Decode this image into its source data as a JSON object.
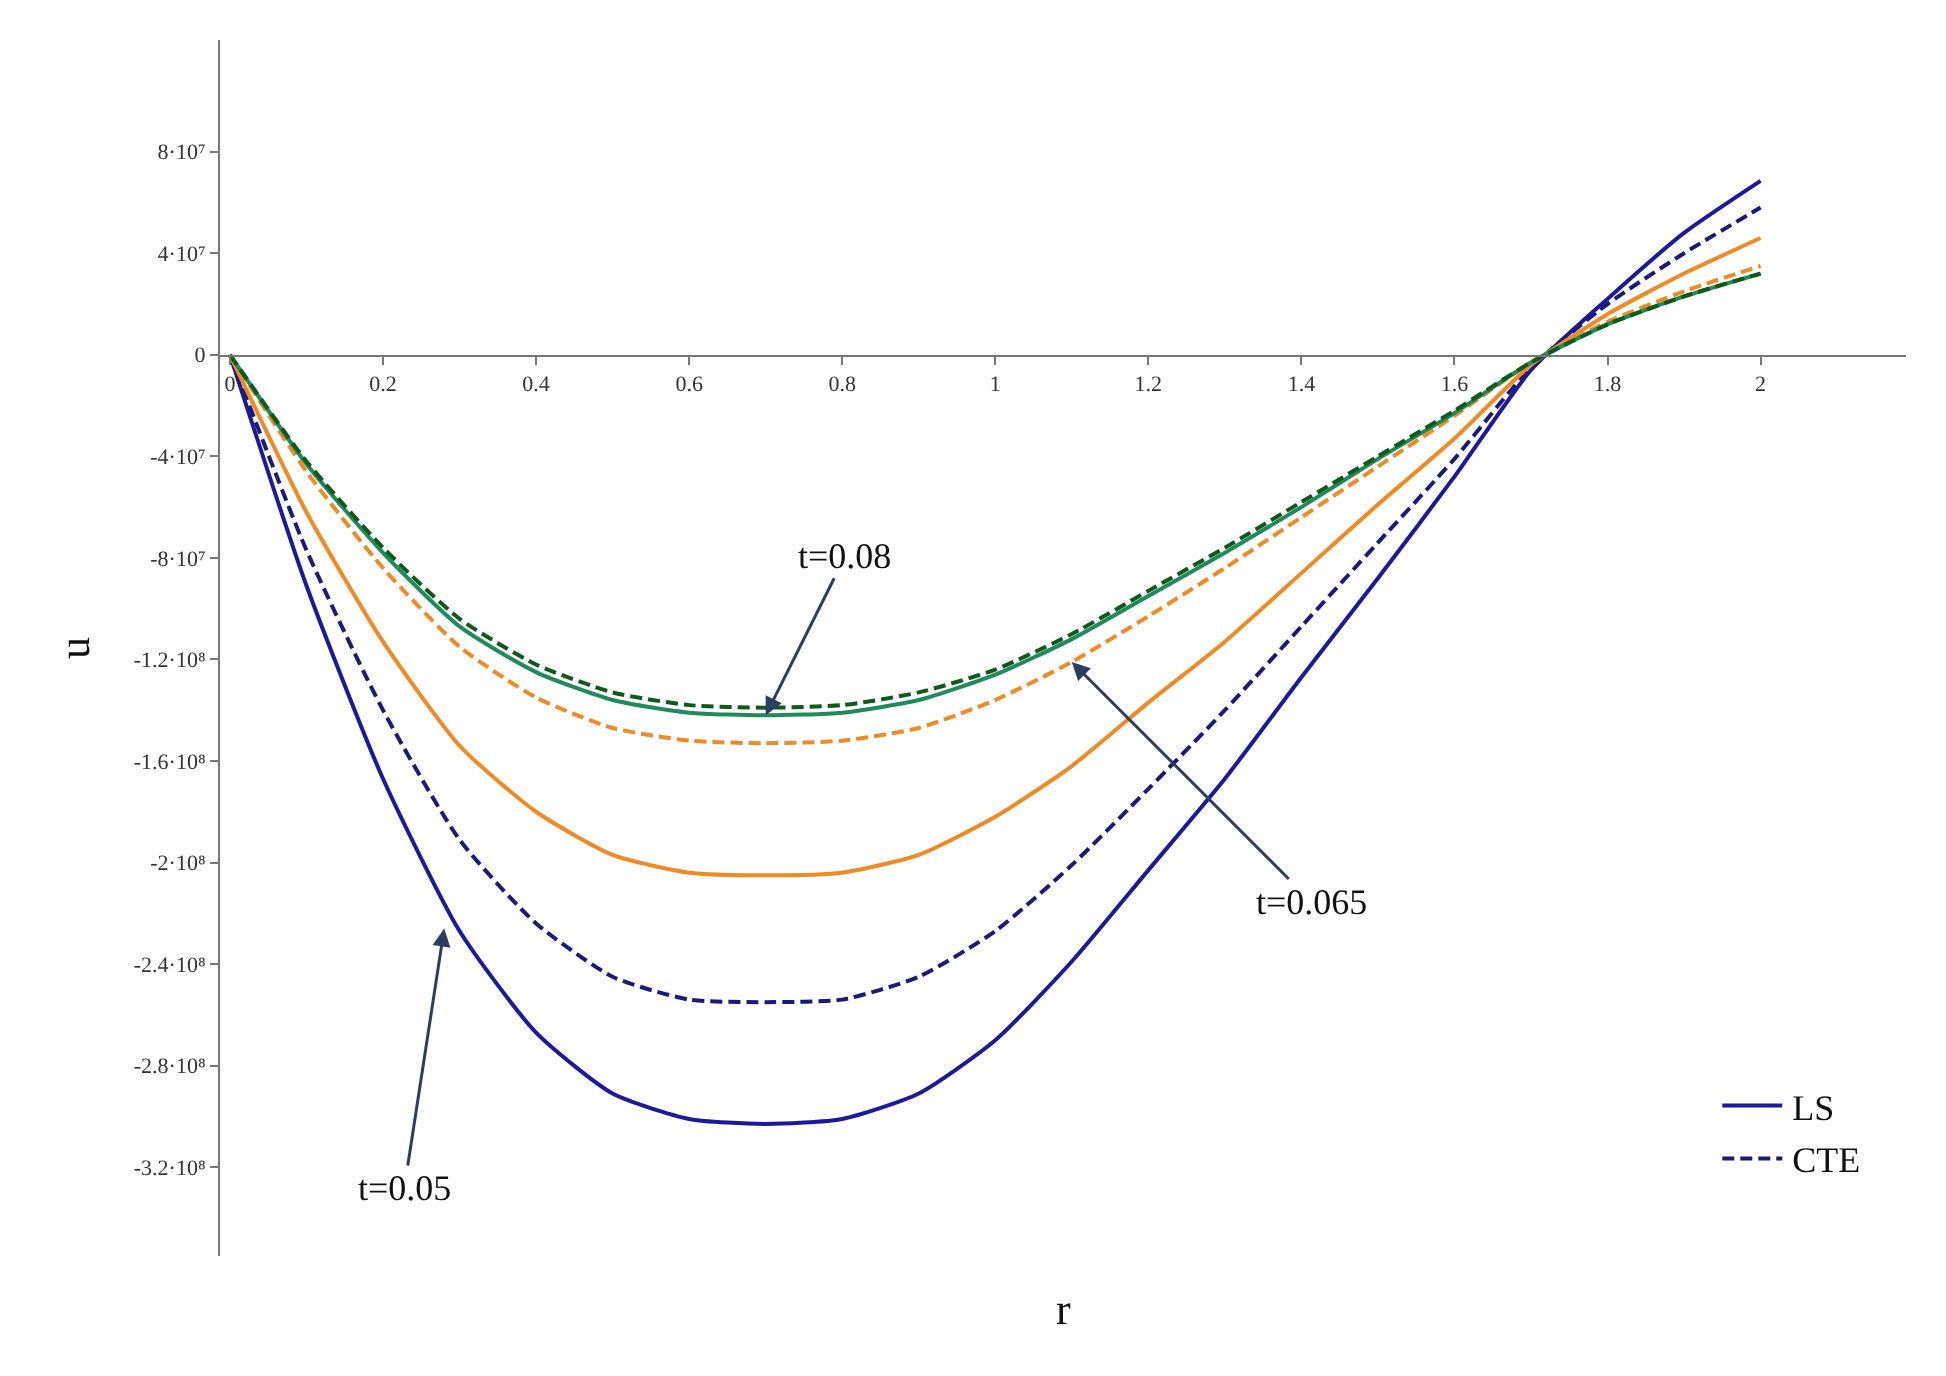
{
  "chart_data": {
    "type": "line",
    "xlabel": "r",
    "ylabel": "u",
    "x": [
      0,
      0.1,
      0.2,
      0.3,
      0.4,
      0.5,
      0.6,
      0.7,
      0.8,
      0.9,
      1.0,
      1.1,
      1.2,
      1.3,
      1.4,
      1.5,
      1.6,
      1.7,
      1.8,
      1.9,
      2.0
    ],
    "series": [
      {
        "name": "LS",
        "color": "#1a1a9a",
        "line_style": "solid",
        "values": [
          0,
          -91000000.0,
          -167000000.0,
          -227000000.0,
          -267000000.0,
          -291000000.0,
          -301000000.0,
          -303000000.0,
          -301000000.0,
          -291000000.0,
          -270000000.0,
          -239000000.0,
          -203000000.0,
          -167000000.0,
          -127000000.0,
          -88000000.0,
          -48000000.0,
          -6000000.0,
          22000000.0,
          48000000.0,
          68500000.0
        ]
      },
      {
        "name": "CTE",
        "color": "#1a1a7a",
        "line_style": "dashed",
        "values": [
          0,
          -77000000.0,
          -140000000.0,
          -191000000.0,
          -224000000.0,
          -245000000.0,
          -254000000.0,
          -255000000.0,
          -254000000.0,
          -245000000.0,
          -227000000.0,
          -201000000.0,
          -171000000.0,
          -140000000.0,
          -107000000.0,
          -74000000.0,
          -41000000.0,
          -5000000.0,
          20000000.0,
          40000000.0,
          58000000.0
        ]
      },
      {
        "color": "#f08a24",
        "line_style": "solid",
        "values": [
          0,
          -62000000.0,
          -113000000.0,
          -154000000.0,
          -180000000.0,
          -197000000.0,
          -204000000.0,
          -205000000.0,
          -204000000.0,
          -197000000.0,
          -182000000.0,
          -162000000.0,
          -137000000.0,
          -113000000.0,
          -86000000.0,
          -59000000.0,
          -33000000.0,
          -4000000.0,
          16000000.0,
          32000000.0,
          46000000.0
        ]
      },
      {
        "color": "#f08a24",
        "line_style": "dashed",
        "values": [
          0,
          -46000000.0,
          -84000000.0,
          -115000000.0,
          -135000000.0,
          -147000000.0,
          -152000000.0,
          -153000000.0,
          -152000000.0,
          -147000000.0,
          -136000000.0,
          -121000000.0,
          -103000000.0,
          -84000000.0,
          -64000000.0,
          -44000000.0,
          -24000000.0,
          -3000000.0,
          13000000.0,
          25000000.0,
          35000000.0
        ]
      },
      {
        "color": "#1f8a5a",
        "line_style": "solid",
        "values": [
          0,
          -43000000.0,
          -78000000.0,
          -107000000.0,
          -125000000.0,
          -136000000.0,
          -141000000.0,
          -142000000.0,
          -141000000.0,
          -136000000.0,
          -126000000.0,
          -112000000.0,
          -95000000.0,
          -78000000.0,
          -60000000.0,
          -41000000.0,
          -23000000.0,
          -3000000.0,
          12000000.0,
          23000000.0,
          32000000.0
        ]
      },
      {
        "color": "#0f5a1a",
        "line_style": "dashed",
        "values": [
          0,
          -42000000.0,
          -76000000.0,
          -104000000.0,
          -122000000.0,
          -133000000.0,
          -138000000.0,
          -139000000.0,
          -138000000.0,
          -133000000.0,
          -124000000.0,
          -110000000.0,
          -93000000.0,
          -76000000.0,
          -58000000.0,
          -40000000.0,
          -22000000.0,
          -3000000.0,
          12000000.0,
          23000000.0,
          32000000.0
        ]
      }
    ],
    "xlim": [
      -0.013,
      2.19
    ],
    "ylim": [
      -355000000.0,
      124000000.0
    ],
    "xticks": [
      0,
      0.2,
      0.4,
      0.6,
      0.8,
      1,
      1.2,
      1.4,
      1.6,
      1.8,
      2
    ],
    "yticks": [
      {
        "value": 80000000.0,
        "label": "8·10⁷"
      },
      {
        "value": 40000000.0,
        "label": "4·10⁷"
      },
      0,
      {
        "value": -40000000.0,
        "label": "-4·10⁷"
      },
      {
        "value": -80000000.0,
        "label": "-8·10⁷"
      },
      {
        "value": -120000000.0,
        "label": "-1.2·10⁸"
      },
      {
        "value": -160000000.0,
        "label": "-1.6·10⁸"
      },
      {
        "value": -200000000.0,
        "label": "-2·10⁸"
      },
      {
        "value": -240000000.0,
        "label": "-2.4·10⁸"
      },
      {
        "value": -280000000.0,
        "label": "-2.8·10⁸"
      },
      {
        "value": -320000000.0,
        "label": "-3.2·10⁸"
      }
    ],
    "annotations": [
      {
        "text": "t=0.08",
        "x": 0.7,
        "y": -142000000.0
      },
      {
        "text": "t=0.065",
        "x": 1.1,
        "y": -121000000.0
      },
      {
        "text": "t=0.05",
        "x": 0.28,
        "y": -226000000.0
      }
    ],
    "legend": "bottom right"
  }
}
